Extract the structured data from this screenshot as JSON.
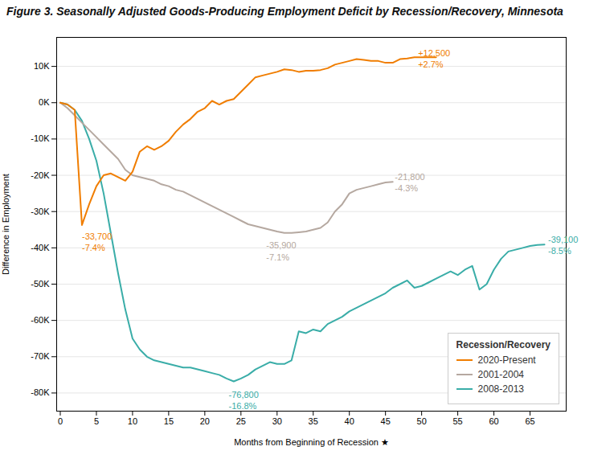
{
  "chart_data": {
    "type": "line",
    "title": "Figure 3. Seasonally Adjusted Goods-Producing Employment Deficit by Recession/Recovery, Minnesota",
    "xlabel": "Months from Beginning of Recession ★",
    "ylabel": "Difference in Employment",
    "xlim": [
      -0.5,
      70
    ],
    "ylim": [
      -85000,
      18000
    ],
    "xticks": [
      0,
      5,
      10,
      15,
      20,
      25,
      30,
      35,
      40,
      45,
      50,
      55,
      60,
      65
    ],
    "yticks": [
      {
        "value": -80000,
        "label": "-80K"
      },
      {
        "value": -70000,
        "label": "-70K"
      },
      {
        "value": -60000,
        "label": "-60K"
      },
      {
        "value": -50000,
        "label": "-50K"
      },
      {
        "value": -40000,
        "label": "-40K"
      },
      {
        "value": -30000,
        "label": "-30K"
      },
      {
        "value": -20000,
        "label": "-20K"
      },
      {
        "value": -10000,
        "label": "-10K"
      },
      {
        "value": 0,
        "label": "0K"
      },
      {
        "value": 10000,
        "label": "10K"
      }
    ],
    "grid": true,
    "legend": "lower right",
    "legend_title": "Recession/Recovery",
    "series": [
      {
        "name": "2020-Present",
        "color": "#f07d00",
        "x": [
          0,
          1,
          2,
          3,
          4,
          5,
          6,
          7,
          8,
          9,
          10,
          11,
          12,
          13,
          14,
          15,
          16,
          17,
          18,
          19,
          20,
          21,
          22,
          23,
          24,
          25,
          26,
          27,
          28,
          29,
          30,
          31,
          32,
          33,
          34,
          35,
          36,
          37,
          38,
          39,
          40,
          41,
          42,
          43,
          44,
          45,
          46,
          47,
          48,
          49,
          50,
          51,
          52
        ],
        "values": [
          0,
          -500,
          -2000,
          -33700,
          -28000,
          -23000,
          -20000,
          -19500,
          -20500,
          -21500,
          -19000,
          -13500,
          -12000,
          -13000,
          -12000,
          -10500,
          -8000,
          -6000,
          -4500,
          -2500,
          -1500,
          500,
          -500,
          500,
          1000,
          3000,
          5000,
          7000,
          7500,
          8000,
          8500,
          9200,
          9000,
          8500,
          8800,
          8800,
          9000,
          9500,
          10500,
          11000,
          11500,
          12000,
          11800,
          11500,
          11500,
          11000,
          11000,
          12000,
          12200,
          12500,
          12500,
          12500,
          12500
        ],
        "end_label": {
          "text": "+12,500\n+2.7%",
          "x": 49.5,
          "y": 12200
        },
        "min_label": {
          "text": "-33,700\n-7.4%",
          "x": 3.0,
          "y": -35500
        }
      },
      {
        "name": "2001-2004",
        "color": "#b5a8a0",
        "x": [
          0,
          1,
          2,
          3,
          4,
          5,
          6,
          7,
          8,
          9,
          10,
          11,
          12,
          13,
          14,
          15,
          16,
          17,
          18,
          19,
          20,
          21,
          22,
          23,
          24,
          25,
          26,
          27,
          28,
          29,
          30,
          31,
          32,
          33,
          34,
          35,
          36,
          37,
          38,
          39,
          40,
          41,
          42,
          43,
          44,
          45,
          46
        ],
        "values": [
          0,
          -1500,
          -3500,
          -5500,
          -7500,
          -9500,
          -11500,
          -13500,
          -15500,
          -18500,
          -20000,
          -20500,
          -21000,
          -21500,
          -22500,
          -23000,
          -24000,
          -24500,
          -25500,
          -26500,
          -27500,
          -28500,
          -29500,
          -30500,
          -31500,
          -32500,
          -33500,
          -34000,
          -34500,
          -35000,
          -35500,
          -35900,
          -35900,
          -35700,
          -35500,
          -35000,
          -34500,
          -33000,
          -30000,
          -28000,
          -25000,
          -24000,
          -23500,
          -23000,
          -22500,
          -22000,
          -21800
        ],
        "end_label": {
          "text": "-21,800\n-4.3%",
          "x": 46.3,
          "y": -21800
        },
        "min_label": {
          "text": "-35,900\n-7.1%",
          "x": 28.5,
          "y": -38000
        }
      },
      {
        "name": "2008-2013",
        "color": "#3aada8",
        "x": [
          0,
          1,
          2,
          3,
          4,
          5,
          6,
          7,
          8,
          9,
          10,
          11,
          12,
          13,
          14,
          15,
          16,
          17,
          18,
          19,
          20,
          21,
          22,
          23,
          24,
          25,
          26,
          27,
          28,
          29,
          30,
          31,
          32,
          33,
          34,
          35,
          36,
          37,
          38,
          39,
          40,
          41,
          42,
          43,
          44,
          45,
          46,
          47,
          48,
          49,
          50,
          51,
          52,
          53,
          54,
          55,
          56,
          57,
          58,
          59,
          60,
          61,
          62,
          63,
          64,
          65,
          66,
          67
        ],
        "values": [
          0,
          -500,
          -2000,
          -5000,
          -10000,
          -16000,
          -25000,
          -36000,
          -47000,
          -57000,
          -65000,
          -68000,
          -70000,
          -71000,
          -71500,
          -72000,
          -72500,
          -73000,
          -73000,
          -73500,
          -74000,
          -74500,
          -75000,
          -76000,
          -76800,
          -76000,
          -75000,
          -73500,
          -72500,
          -71500,
          -72000,
          -72000,
          -71000,
          -63000,
          -63500,
          -62500,
          -63000,
          -61000,
          -60000,
          -59000,
          -57500,
          -56500,
          -55500,
          -54500,
          -53500,
          -52500,
          -51000,
          -50000,
          -49000,
          -51000,
          -50500,
          -49500,
          -48500,
          -47500,
          -46500,
          -47500,
          -46000,
          -45000,
          -51500,
          -50000,
          -46000,
          -43000,
          -41000,
          -40500,
          -40000,
          -39500,
          -39200,
          -39100
        ],
        "end_label": {
          "text": "-39,100\n-8.5%",
          "x": 67.5,
          "y": -39100
        },
        "min_label": {
          "text": "-76,800\n-16.8%",
          "x": 23.3,
          "y": -79000
        }
      }
    ]
  }
}
